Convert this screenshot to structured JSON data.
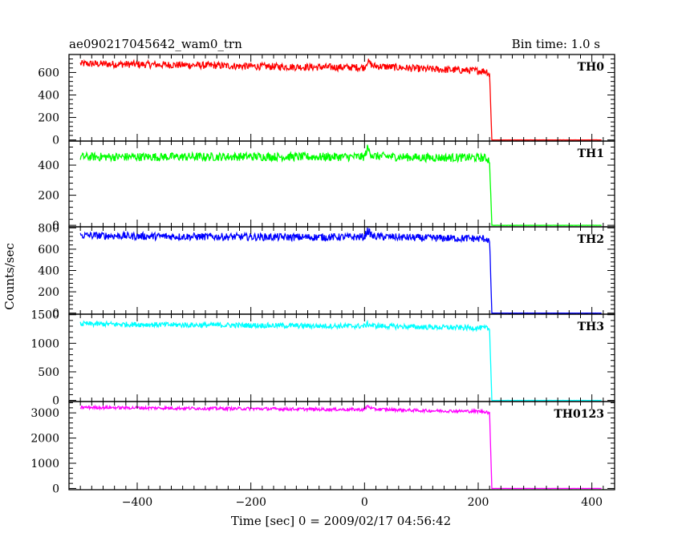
{
  "header": {
    "title": "ae090217045642_wam0_trn",
    "bin_time": "Bin time: 1.0 s"
  },
  "chart_data": {
    "type": "line",
    "xlabel": "Time [sec] 0 = 2009/02/17 04:56:42",
    "ylabel": "Counts/sec",
    "xlim": [
      -520,
      440
    ],
    "x_ticks": [
      -400,
      -200,
      0,
      200,
      400
    ],
    "x_tick_labels": [
      "−400",
      "−200",
      "0",
      "200",
      "400"
    ],
    "cutoff_time": 222,
    "x_end": 417,
    "panels": [
      {
        "name": "TH0",
        "color": "#ff0000",
        "ylim": [
          -10,
          760
        ],
        "y_ticks": [
          0,
          200,
          400,
          600
        ],
        "y_tick_labels": [
          "0",
          "200",
          "400",
          "600"
        ],
        "series_points": [
          [
            -500,
            678
          ],
          [
            -400,
            672
          ],
          [
            -300,
            665
          ],
          [
            -200,
            655
          ],
          [
            -100,
            648
          ],
          [
            0,
            645
          ],
          [
            5,
            700
          ],
          [
            15,
            658
          ],
          [
            100,
            632
          ],
          [
            200,
            615
          ],
          [
            215,
            612
          ],
          [
            220,
            580
          ],
          [
            224,
            0
          ],
          [
            417,
            0
          ]
        ],
        "noise": 32
      },
      {
        "name": "TH1",
        "color": "#00ff00",
        "ylim": [
          -10,
          560
        ],
        "y_ticks": [
          0,
          200,
          400
        ],
        "y_tick_labels": [
          "0",
          "200",
          "400"
        ],
        "series_points": [
          [
            -500,
            455
          ],
          [
            -400,
            455
          ],
          [
            -300,
            455
          ],
          [
            -200,
            457
          ],
          [
            -100,
            455
          ],
          [
            0,
            455
          ],
          [
            5,
            510
          ],
          [
            15,
            460
          ],
          [
            100,
            450
          ],
          [
            200,
            450
          ],
          [
            215,
            445
          ],
          [
            220,
            430
          ],
          [
            224,
            0
          ],
          [
            417,
            0
          ]
        ],
        "noise": 28
      },
      {
        "name": "TH2",
        "color": "#0000ff",
        "ylim": [
          -10,
          810
        ],
        "y_ticks": [
          0,
          200,
          400,
          600,
          800
        ],
        "y_tick_labels": [
          "0",
          "200",
          "400",
          "600",
          "800"
        ],
        "series_points": [
          [
            -500,
            730
          ],
          [
            -400,
            722
          ],
          [
            -300,
            718
          ],
          [
            -200,
            715
          ],
          [
            -100,
            712
          ],
          [
            0,
            715
          ],
          [
            5,
            775
          ],
          [
            15,
            720
          ],
          [
            100,
            705
          ],
          [
            200,
            700
          ],
          [
            215,
            698
          ],
          [
            220,
            670
          ],
          [
            224,
            0
          ],
          [
            417,
            0
          ]
        ],
        "noise": 35
      },
      {
        "name": "TH3",
        "color": "#00ffff",
        "ylim": [
          -20,
          1510
        ],
        "y_ticks": [
          0,
          500,
          1000,
          1500
        ],
        "y_tick_labels": [
          "0",
          "500",
          "1000",
          "1500"
        ],
        "series_points": [
          [
            -500,
            1340
          ],
          [
            -400,
            1330
          ],
          [
            -300,
            1320
          ],
          [
            -200,
            1315
          ],
          [
            -100,
            1305
          ],
          [
            0,
            1300
          ],
          [
            5,
            1340
          ],
          [
            15,
            1305
          ],
          [
            100,
            1285
          ],
          [
            200,
            1270
          ],
          [
            215,
            1265
          ],
          [
            220,
            1240
          ],
          [
            224,
            0
          ],
          [
            417,
            0
          ]
        ],
        "noise": 45
      },
      {
        "name": "TH0123",
        "color": "#ff00ff",
        "ylim": [
          -50,
          3450
        ],
        "y_ticks": [
          0,
          1000,
          2000,
          3000
        ],
        "y_tick_labels": [
          "0",
          "1000",
          "2000",
          "3000"
        ],
        "series_points": [
          [
            -500,
            3220
          ],
          [
            -400,
            3200
          ],
          [
            -300,
            3180
          ],
          [
            -200,
            3165
          ],
          [
            -100,
            3145
          ],
          [
            0,
            3130
          ],
          [
            5,
            3280
          ],
          [
            15,
            3150
          ],
          [
            100,
            3090
          ],
          [
            200,
            3060
          ],
          [
            215,
            3050
          ],
          [
            220,
            2950
          ],
          [
            224,
            0
          ],
          [
            417,
            0
          ]
        ],
        "noise": 60
      }
    ]
  }
}
